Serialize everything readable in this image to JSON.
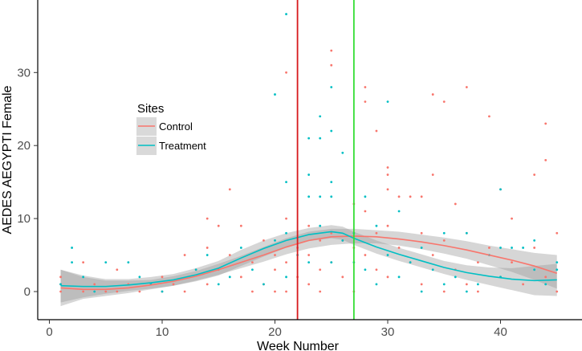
{
  "chart_data": {
    "type": "scatter",
    "title": "",
    "xlabel": "Week Number",
    "ylabel": "AEDES AEGYPTI Female",
    "xlim": [
      -1,
      47
    ],
    "ylim": [
      -4,
      40
    ],
    "xticks": [
      0,
      10,
      20,
      30,
      40
    ],
    "yticks": [
      0,
      10,
      20,
      30
    ],
    "grid": false,
    "legend": {
      "title": "Sites",
      "position": "left-middle",
      "entries": [
        "Control",
        "Treatment"
      ]
    },
    "series": [
      {
        "name": "Control",
        "color": "#f8766d",
        "points": [
          [
            1,
            2
          ],
          [
            1,
            1
          ],
          [
            1,
            0
          ],
          [
            3,
            4
          ],
          [
            3,
            0
          ],
          [
            4,
            1
          ],
          [
            5,
            0
          ],
          [
            6,
            3
          ],
          [
            6,
            0
          ],
          [
            7,
            1
          ],
          [
            8,
            0
          ],
          [
            9,
            1
          ],
          [
            10,
            2
          ],
          [
            10,
            0
          ],
          [
            11,
            1
          ],
          [
            12,
            5
          ],
          [
            12,
            0
          ],
          [
            13,
            3
          ],
          [
            14,
            10
          ],
          [
            14,
            6
          ],
          [
            14,
            1
          ],
          [
            15,
            9
          ],
          [
            15,
            3
          ],
          [
            16,
            14
          ],
          [
            16,
            5
          ],
          [
            17,
            9
          ],
          [
            17,
            2
          ],
          [
            18,
            4
          ],
          [
            18,
            0
          ],
          [
            19,
            7
          ],
          [
            19,
            1
          ],
          [
            20,
            5
          ],
          [
            20,
            3
          ],
          [
            20,
            0
          ],
          [
            21,
            30
          ],
          [
            21,
            10
          ],
          [
            21,
            4
          ],
          [
            21,
            0
          ],
          [
            22,
            6
          ],
          [
            22,
            2
          ],
          [
            23,
            9
          ],
          [
            23,
            5
          ],
          [
            23,
            1
          ],
          [
            24,
            7
          ],
          [
            24,
            3
          ],
          [
            24,
            0
          ],
          [
            25,
            33
          ],
          [
            25,
            31
          ],
          [
            25,
            8
          ],
          [
            25,
            4
          ],
          [
            26,
            7
          ],
          [
            26,
            2
          ],
          [
            27,
            12
          ],
          [
            27,
            6
          ],
          [
            27,
            0
          ],
          [
            28,
            28
          ],
          [
            28,
            26
          ],
          [
            28,
            11
          ],
          [
            28,
            5
          ],
          [
            29,
            22
          ],
          [
            29,
            8
          ],
          [
            29,
            3
          ],
          [
            30,
            17
          ],
          [
            30,
            16
          ],
          [
            30,
            14
          ],
          [
            30,
            9
          ],
          [
            30,
            2
          ],
          [
            31,
            13
          ],
          [
            31,
            6
          ],
          [
            32,
            13
          ],
          [
            32,
            4
          ],
          [
            33,
            13
          ],
          [
            33,
            8
          ],
          [
            33,
            1
          ],
          [
            34,
            27
          ],
          [
            34,
            16
          ],
          [
            34,
            5
          ],
          [
            35,
            26
          ],
          [
            35,
            7
          ],
          [
            35,
            0
          ],
          [
            36,
            12
          ],
          [
            36,
            3
          ],
          [
            37,
            28
          ],
          [
            37,
            8
          ],
          [
            37,
            1
          ],
          [
            38,
            4
          ],
          [
            38,
            0
          ],
          [
            39,
            24
          ],
          [
            39,
            6
          ],
          [
            40,
            14
          ],
          [
            40,
            2
          ],
          [
            41,
            10
          ],
          [
            41,
            4
          ],
          [
            42,
            1
          ],
          [
            43,
            16
          ],
          [
            43,
            6
          ],
          [
            44,
            23
          ],
          [
            44,
            18
          ],
          [
            44,
            2
          ],
          [
            45,
            8
          ],
          [
            45,
            0
          ]
        ],
        "smooth": [
          [
            1,
            0.5
          ],
          [
            3,
            0.3
          ],
          [
            5,
            0.3
          ],
          [
            7,
            0.5
          ],
          [
            9,
            0.9
          ],
          [
            11,
            1.4
          ],
          [
            13,
            2.1
          ],
          [
            15,
            3.0
          ],
          [
            17,
            4.0
          ],
          [
            19,
            5.0
          ],
          [
            21,
            6.1
          ],
          [
            23,
            7.0
          ],
          [
            25,
            7.5
          ],
          [
            27,
            7.6
          ],
          [
            29,
            7.5
          ],
          [
            31,
            7.2
          ],
          [
            33,
            6.8
          ],
          [
            35,
            6.3
          ],
          [
            37,
            5.7
          ],
          [
            39,
            5.0
          ],
          [
            41,
            4.3
          ],
          [
            43,
            3.5
          ],
          [
            45,
            2.5
          ]
        ],
        "band": [
          [
            1,
            -2,
            3
          ],
          [
            3,
            -1,
            2
          ],
          [
            5,
            -0.6,
            1.5
          ],
          [
            7,
            -0.2,
            1.5
          ],
          [
            9,
            0.3,
            1.6
          ],
          [
            11,
            0.8,
            2.1
          ],
          [
            13,
            1.5,
            2.8
          ],
          [
            15,
            2.3,
            3.8
          ],
          [
            17,
            3.2,
            4.9
          ],
          [
            19,
            4.1,
            6.1
          ],
          [
            21,
            5.1,
            7.3
          ],
          [
            23,
            5.9,
            8.2
          ],
          [
            25,
            6.4,
            8.6
          ],
          [
            27,
            6.6,
            8.6
          ],
          [
            29,
            6.6,
            8.4
          ],
          [
            31,
            6.3,
            8.2
          ],
          [
            33,
            5.8,
            7.8
          ],
          [
            35,
            5.2,
            7.4
          ],
          [
            37,
            4.5,
            6.9
          ],
          [
            39,
            3.6,
            6.3
          ],
          [
            41,
            2.7,
            5.8
          ],
          [
            43,
            1.6,
            5.3
          ],
          [
            45,
            0.4,
            5.0
          ]
        ]
      },
      {
        "name": "Treatment",
        "color": "#00bfc4",
        "points": [
          [
            1,
            1
          ],
          [
            2,
            6
          ],
          [
            2,
            4
          ],
          [
            3,
            2
          ],
          [
            4,
            0
          ],
          [
            5,
            4
          ],
          [
            7,
            4
          ],
          [
            8,
            2
          ],
          [
            9,
            1
          ],
          [
            10,
            0
          ],
          [
            13,
            3
          ],
          [
            14,
            5
          ],
          [
            15,
            1
          ],
          [
            16,
            2
          ],
          [
            17,
            6
          ],
          [
            18,
            3
          ],
          [
            19,
            1
          ],
          [
            20,
            27
          ],
          [
            20,
            7
          ],
          [
            21,
            38
          ],
          [
            21,
            15
          ],
          [
            21,
            8
          ],
          [
            21,
            2
          ],
          [
            22,
            5
          ],
          [
            23,
            21
          ],
          [
            23,
            16
          ],
          [
            23,
            13
          ],
          [
            23,
            4
          ],
          [
            24,
            24
          ],
          [
            24,
            21
          ],
          [
            24,
            13
          ],
          [
            24,
            9
          ],
          [
            25,
            28
          ],
          [
            25,
            22
          ],
          [
            25,
            15
          ],
          [
            25,
            13
          ],
          [
            25,
            4
          ],
          [
            26,
            19
          ],
          [
            26,
            7
          ],
          [
            27,
            8
          ],
          [
            27,
            4
          ],
          [
            28,
            13
          ],
          [
            28,
            3
          ],
          [
            29,
            9
          ],
          [
            29,
            1
          ],
          [
            30,
            26
          ],
          [
            30,
            5
          ],
          [
            31,
            11
          ],
          [
            31,
            2
          ],
          [
            32,
            4
          ],
          [
            33,
            6
          ],
          [
            33,
            0
          ],
          [
            34,
            3
          ],
          [
            35,
            8
          ],
          [
            35,
            1
          ],
          [
            36,
            2
          ],
          [
            37,
            8
          ],
          [
            37,
            0
          ],
          [
            38,
            1
          ],
          [
            39,
            5
          ],
          [
            40,
            14
          ],
          [
            40,
            6
          ],
          [
            40,
            2
          ],
          [
            41,
            6
          ],
          [
            42,
            6
          ],
          [
            43,
            7
          ],
          [
            43,
            3
          ],
          [
            44,
            1
          ],
          [
            45,
            4
          ],
          [
            45,
            3
          ]
        ],
        "smooth": [
          [
            1,
            0.8
          ],
          [
            3,
            0.7
          ],
          [
            5,
            0.7
          ],
          [
            7,
            0.9
          ],
          [
            9,
            1.2
          ],
          [
            11,
            1.6
          ],
          [
            13,
            2.3
          ],
          [
            15,
            3.2
          ],
          [
            17,
            4.6
          ],
          [
            19,
            5.9
          ],
          [
            21,
            7.0
          ],
          [
            23,
            7.8
          ],
          [
            25,
            8.2
          ],
          [
            26,
            8.0
          ],
          [
            27,
            7.3
          ],
          [
            29,
            6.1
          ],
          [
            31,
            5.1
          ],
          [
            33,
            4.2
          ],
          [
            35,
            3.3
          ],
          [
            37,
            2.6
          ],
          [
            39,
            2.1
          ],
          [
            41,
            1.7
          ],
          [
            43,
            1.5
          ],
          [
            45,
            1.6
          ]
        ],
        "band": [
          [
            1,
            -1.5,
            3
          ],
          [
            3,
            -0.8,
            2.2
          ],
          [
            5,
            -0.3,
            1.7
          ],
          [
            7,
            0.1,
            1.7
          ],
          [
            9,
            0.4,
            2.0
          ],
          [
            11,
            0.8,
            2.4
          ],
          [
            13,
            1.4,
            3.2
          ],
          [
            15,
            2.2,
            4.2
          ],
          [
            17,
            3.5,
            5.7
          ],
          [
            19,
            4.8,
            7.0
          ],
          [
            21,
            6.0,
            8.0
          ],
          [
            23,
            6.9,
            8.7
          ],
          [
            25,
            7.3,
            9.1
          ],
          [
            26,
            7.1,
            8.9
          ],
          [
            27,
            6.4,
            8.2
          ],
          [
            29,
            5.2,
            7.0
          ],
          [
            31,
            4.2,
            6.0
          ],
          [
            33,
            3.3,
            5.1
          ],
          [
            35,
            2.4,
            4.2
          ],
          [
            37,
            1.6,
            3.6
          ],
          [
            39,
            0.9,
            3.3
          ],
          [
            41,
            0.2,
            3.2
          ],
          [
            43,
            -0.5,
            3.5
          ],
          [
            45,
            -0.6,
            3.8
          ]
        ]
      }
    ],
    "vlines": [
      {
        "x": 22,
        "color": "#d7191c"
      },
      {
        "x": 27,
        "color": "#33dd33"
      }
    ]
  }
}
